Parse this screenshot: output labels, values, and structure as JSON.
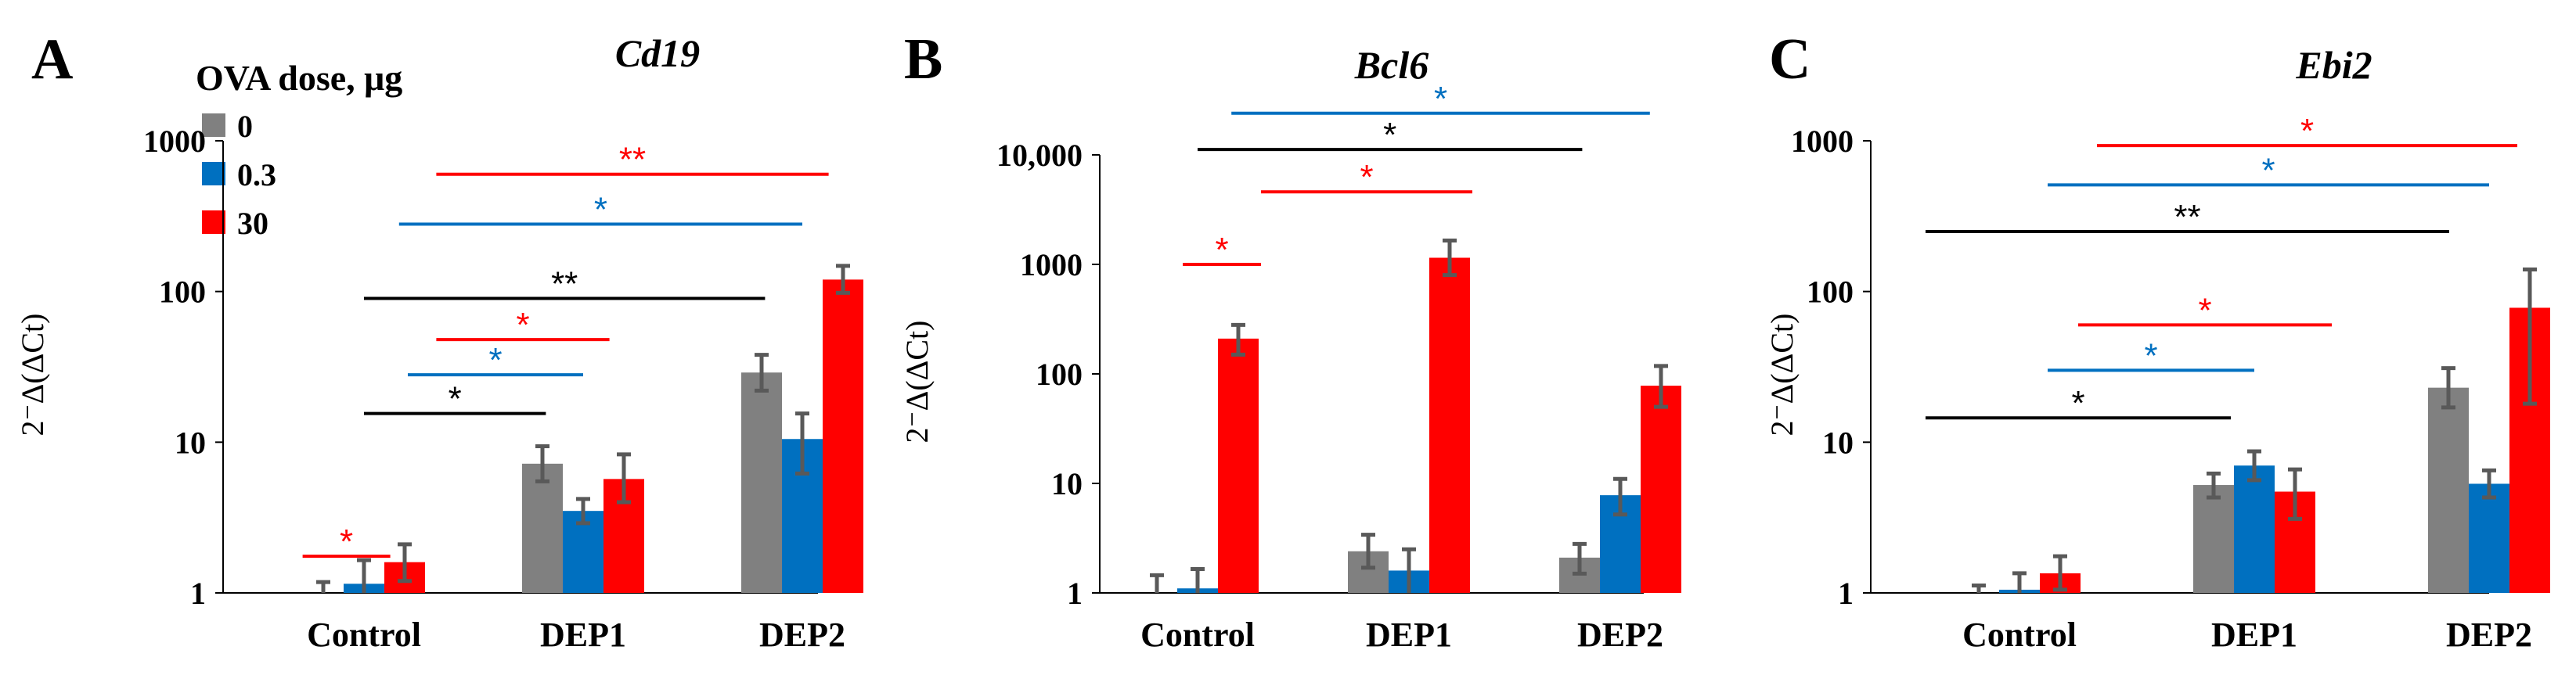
{
  "legend": {
    "title": "OVA dose, μg",
    "entries": [
      {
        "label": "0",
        "color": "#808080"
      },
      {
        "label": "0.3",
        "color": "#0070C0"
      },
      {
        "label": "30",
        "color": "#FF0000"
      }
    ]
  },
  "colors": {
    "black": "#000000",
    "blue": "#0070C0",
    "red": "#FF0000",
    "error": "#595959"
  },
  "chart_data": [
    {
      "type": "bar",
      "panel_letter": "A",
      "title": "Cd19",
      "ylabel": "2⁻Δ(ΔCt)",
      "scale": "log",
      "ylim": [
        1,
        1000
      ],
      "yticks": [
        1,
        10,
        100,
        1000
      ],
      "ytick_labels": [
        "1",
        "10",
        "100",
        "1000"
      ],
      "categories": [
        "Control",
        "DEP1",
        "DEP2"
      ],
      "series": [
        {
          "name": "0",
          "values": [
            1.0,
            7.2,
            29
          ],
          "err_low": [
            0.88,
            5.5,
            22
          ],
          "err_high": [
            1.18,
            9.4,
            38
          ]
        },
        {
          "name": "0.3",
          "values": [
            1.15,
            3.5,
            10.5
          ],
          "err_low": [
            0.85,
            2.9,
            6.2
          ],
          "err_high": [
            1.65,
            4.2,
            15.5
          ]
        },
        {
          "name": "30",
          "values": [
            1.6,
            5.7,
            120
          ],
          "err_low": [
            1.2,
            4.0,
            98
          ],
          "err_high": [
            2.1,
            8.3,
            148
          ]
        }
      ],
      "significance": [
        {
          "from": 0,
          "to": 1,
          "label": "*",
          "color": "red",
          "level": 2.0,
          "y_value": 1.75,
          "x_start": -0.28,
          "x_end": 0.12
        },
        {
          "from": 0,
          "to": 1,
          "label": "*",
          "color": "black",
          "level": 0,
          "y_value": 15.5,
          "x_start": 0.0,
          "x_end": 0.83
        },
        {
          "from": 0,
          "to": 1,
          "label": "*",
          "color": "blue",
          "level": 0.3,
          "y_value": 28,
          "x_start": 0.2,
          "x_end": 1.0
        },
        {
          "from": 0,
          "to": 2,
          "label": "*",
          "color": "red",
          "level": 30,
          "y_value": 48,
          "x_start": 0.33,
          "x_end": 1.12
        },
        {
          "from": 0,
          "to": 2,
          "label": "**",
          "color": "black",
          "level": 0,
          "y_value": 90,
          "x_start": 0.0,
          "x_end": 1.83
        },
        {
          "from": 0,
          "to": 2,
          "label": "*",
          "color": "blue",
          "level": 0.3,
          "y_value": 280,
          "x_start": 0.16,
          "x_end": 2.0
        },
        {
          "from": 0,
          "to": 2,
          "label": "**",
          "color": "red",
          "level": 30,
          "y_value": 600,
          "x_start": 0.33,
          "x_end": 2.12
        }
      ]
    },
    {
      "type": "bar",
      "panel_letter": "B",
      "title": "Bcl6",
      "ylabel": "2⁻Δ(ΔCt)",
      "scale": "log",
      "ylim": [
        1,
        10000
      ],
      "yticks": [
        1,
        10,
        100,
        1000,
        10000
      ],
      "ytick_labels": [
        "1",
        "10",
        "100",
        "1000",
        "10,000"
      ],
      "categories": [
        "Control",
        "DEP1",
        "DEP2"
      ],
      "series": [
        {
          "name": "0",
          "values": [
            1.0,
            2.4,
            2.1
          ],
          "err_low": [
            0.7,
            1.7,
            1.5
          ],
          "err_high": [
            1.45,
            3.4,
            2.8
          ]
        },
        {
          "name": "0.3",
          "values": [
            1.1,
            1.6,
            7.8
          ],
          "err_low": [
            0.8,
            0.9,
            5.2
          ],
          "err_high": [
            1.65,
            2.5,
            11
          ]
        },
        {
          "name": "30",
          "values": [
            210,
            1150,
            78
          ],
          "err_low": [
            150,
            800,
            50
          ],
          "err_high": [
            280,
            1650,
            118
          ]
        }
      ],
      "significance": [
        {
          "from": 0,
          "to": 0,
          "label": "*",
          "color": "red",
          "level": 30,
          "y_value": 1000,
          "x_start": -0.07,
          "x_end": 0.3
        },
        {
          "from": 0,
          "to": 1,
          "label": "*",
          "color": "red",
          "level": 30,
          "y_value": 4600,
          "x_start": 0.3,
          "x_end": 1.3
        },
        {
          "from": 0,
          "to": 2,
          "label": "*",
          "color": "black",
          "level": 0,
          "y_value": 11200,
          "x_start": 0.0,
          "x_end": 1.82
        },
        {
          "from": 0,
          "to": 2,
          "label": "*",
          "color": "blue",
          "level": 0.3,
          "y_value": 24000,
          "x_start": 0.16,
          "x_end": 2.14
        }
      ]
    },
    {
      "type": "bar",
      "panel_letter": "C",
      "title": "Ebi2",
      "ylabel": "2⁻Δ(ΔCt)",
      "scale": "log",
      "ylim": [
        1,
        1000
      ],
      "yticks": [
        1,
        10,
        100,
        1000
      ],
      "ytick_labels": [
        "1",
        "10",
        "100",
        "1000"
      ],
      "categories": [
        "Control",
        "DEP1",
        "DEP2"
      ],
      "series": [
        {
          "name": "0",
          "values": [
            1.0,
            5.2,
            23
          ],
          "err_low": [
            0.9,
            4.3,
            17
          ],
          "err_high": [
            1.12,
            6.2,
            31
          ]
        },
        {
          "name": "0.3",
          "values": [
            1.05,
            7.0,
            5.3
          ],
          "err_low": [
            0.8,
            5.6,
            4.3
          ],
          "err_high": [
            1.35,
            8.7,
            6.5
          ]
        },
        {
          "name": "30",
          "values": [
            1.35,
            4.7,
            78
          ],
          "err_low": [
            1.05,
            3.1,
            18
          ],
          "err_high": [
            1.75,
            6.6,
            140
          ]
        }
      ],
      "significance": [
        {
          "from": 0,
          "to": 1,
          "label": "*",
          "color": "black",
          "level": 0,
          "y_value": 14.5,
          "x_start": -0.4,
          "x_end": 0.9
        },
        {
          "from": 0,
          "to": 1,
          "label": "*",
          "color": "blue",
          "level": 0.3,
          "y_value": 30,
          "x_start": 0.12,
          "x_end": 1.0
        },
        {
          "from": 0,
          "to": 1,
          "label": "*",
          "color": "red",
          "level": 30,
          "y_value": 60,
          "x_start": 0.25,
          "x_end": 1.33
        },
        {
          "from": 0,
          "to": 2,
          "label": "**",
          "color": "black",
          "level": 0,
          "y_value": 250,
          "x_start": -0.4,
          "x_end": 1.83
        },
        {
          "from": 0,
          "to": 2,
          "label": "*",
          "color": "blue",
          "level": 0.3,
          "y_value": 510,
          "x_start": 0.12,
          "x_end": 2.0
        },
        {
          "from": 0,
          "to": 2,
          "label": "*",
          "color": "red",
          "level": 30,
          "y_value": 930,
          "x_start": 0.33,
          "x_end": 2.12
        }
      ]
    }
  ]
}
